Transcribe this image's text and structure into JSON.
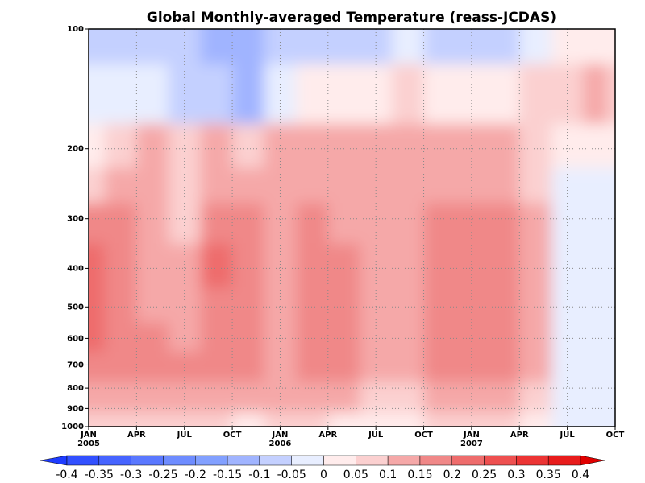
{
  "chart_data": {
    "type": "contour",
    "title": "Global Monthly-averaged Temperature (reass-JCDAS)",
    "x": [
      0,
      2,
      4,
      6,
      8,
      10,
      12,
      14,
      16,
      18,
      20,
      22,
      24,
      26,
      28,
      30,
      32,
      33
    ],
    "levels": [
      100,
      150,
      200,
      250,
      300,
      400,
      500,
      600,
      700,
      850,
      1000
    ],
    "z": [
      [
        -0.1,
        -0.1,
        -0.1,
        -0.1,
        -0.12,
        -0.13,
        -0.1,
        -0.08,
        -0.1,
        -0.1,
        -0.03,
        -0.1,
        -0.1,
        -0.1,
        -0.02,
        0,
        0,
        0
      ],
      [
        -0.05,
        -0.05,
        -0.05,
        -0.08,
        -0.1,
        -0.12,
        -0.03,
        0,
        0,
        0.03,
        0.05,
        0.03,
        0.03,
        0.03,
        0.05,
        0.08,
        0.1,
        0.05
      ],
      [
        0.02,
        0.08,
        0.1,
        0.08,
        0.1,
        0.08,
        0.1,
        0.1,
        0.1,
        0.1,
        0.1,
        0.1,
        0.1,
        0.1,
        0.08,
        0,
        0,
        0
      ],
      [
        0.08,
        0.12,
        0.1,
        0.08,
        0.12,
        0.12,
        0.1,
        0.12,
        0.12,
        0.1,
        0.1,
        0.12,
        0.12,
        0.12,
        0.08,
        -0.02,
        -0.02,
        -0.02
      ],
      [
        0.17,
        0.15,
        0.1,
        0.08,
        0.15,
        0.16,
        0.12,
        0.16,
        0.14,
        0.12,
        0.12,
        0.16,
        0.18,
        0.15,
        0.12,
        -0.02,
        -0.03,
        -0.03
      ],
      [
        0.2,
        0.16,
        0.1,
        0.1,
        0.2,
        0.16,
        0.13,
        0.18,
        0.15,
        0.12,
        0.12,
        0.18,
        0.18,
        0.18,
        0.12,
        -0.03,
        -0.03,
        -0.03
      ],
      [
        0.22,
        0.17,
        0.12,
        0.12,
        0.17,
        0.16,
        0.14,
        0.17,
        0.18,
        0.12,
        0.12,
        0.16,
        0.17,
        0.17,
        0.12,
        -0.03,
        -0.03,
        -0.03
      ],
      [
        0.22,
        0.18,
        0.15,
        0.14,
        0.16,
        0.16,
        0.14,
        0.16,
        0.18,
        0.13,
        0.14,
        0.16,
        0.16,
        0.16,
        0.12,
        -0.02,
        -0.03,
        -0.03
      ],
      [
        0.16,
        0.16,
        0.15,
        0.15,
        0.15,
        0.15,
        0.14,
        0.15,
        0.15,
        0.14,
        0.14,
        0.15,
        0.15,
        0.15,
        0.1,
        -0.02,
        -0.02,
        -0.02
      ],
      [
        0.1,
        0.12,
        0.12,
        0.12,
        0.1,
        0.1,
        0.1,
        0.1,
        0.1,
        0.08,
        0.08,
        0.12,
        0.12,
        0.1,
        0.06,
        -0.02,
        -0.02,
        -0.02
      ],
      [
        0.05,
        0.08,
        0.06,
        0.06,
        0.05,
        0.02,
        0.06,
        0.05,
        0.03,
        0.02,
        0.03,
        0.06,
        0.06,
        0.05,
        0.03,
        -0.02,
        -0.02,
        -0.02
      ]
    ],
    "xlim": [
      0,
      33
    ],
    "xticks": [
      {
        "value": 0,
        "label": "JAN"
      },
      {
        "value": 3,
        "label": "APR"
      },
      {
        "value": 6,
        "label": "JUL"
      },
      {
        "value": 9,
        "label": "OCT"
      },
      {
        "value": 12,
        "label": "JAN"
      },
      {
        "value": 15,
        "label": "APR"
      },
      {
        "value": 18,
        "label": "JUL"
      },
      {
        "value": 21,
        "label": "OCT"
      },
      {
        "value": 24,
        "label": "JAN"
      },
      {
        "value": 27,
        "label": "APR"
      },
      {
        "value": 30,
        "label": "JUL"
      },
      {
        "value": 33,
        "label": "OCT"
      }
    ],
    "xtick_years": [
      {
        "value": 0,
        "label": "2005"
      },
      {
        "value": 12,
        "label": "2006"
      },
      {
        "value": 24,
        "label": "2007"
      }
    ],
    "ylim": [
      100,
      1000
    ],
    "y_log": true,
    "y_inverted": true,
    "yticks": [
      100,
      200,
      300,
      400,
      500,
      600,
      700,
      800,
      900,
      1000
    ],
    "grid": true,
    "colorbar": {
      "levels": [
        -0.4,
        -0.35,
        -0.3,
        -0.25,
        -0.2,
        -0.15,
        -0.1,
        -0.05,
        0,
        0.05,
        0.1,
        0.15,
        0.2,
        0.25,
        0.3,
        0.35,
        0.4
      ],
      "colors": [
        "#1e3cff",
        "#3250ff",
        "#4664ff",
        "#5a78ff",
        "#6e8cff",
        "#82a0ff",
        "#a0b4ff",
        "#c4d0ff",
        "#e8eeff",
        "#ffecec",
        "#fbd0d0",
        "#f5a8a8",
        "#f08888",
        "#ee6c6c",
        "#ee5050",
        "#ec3434",
        "#e81c1c",
        "#e00000"
      ]
    }
  }
}
